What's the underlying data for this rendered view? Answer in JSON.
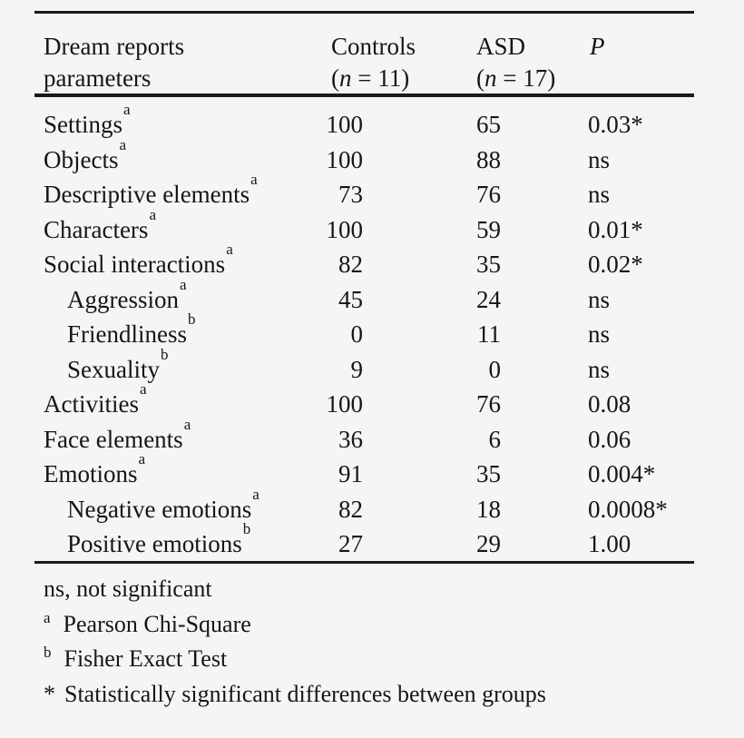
{
  "colors": {
    "background": "#f5f5f4",
    "text": "#161616",
    "rule": "#1a1a1a"
  },
  "header": {
    "param_line1": "Dream reports",
    "param_line2": "parameters",
    "controls_label": "Controls",
    "controls_n": {
      "open": "(",
      "var": "n",
      "rest": " = 11)"
    },
    "asd_label": "ASD",
    "asd_n": {
      "open": "(",
      "var": "n",
      "rest": " = 17)"
    },
    "p_label": "P"
  },
  "rows": [
    {
      "label": "Settings",
      "sup": "a",
      "indent": false,
      "controls": "100",
      "asd": "65",
      "p": "0.03*"
    },
    {
      "label": "Objects",
      "sup": "a",
      "indent": false,
      "controls": "100",
      "asd": "88",
      "p": "ns"
    },
    {
      "label": "Descriptive elements",
      "sup": "a",
      "indent": false,
      "controls": "73",
      "asd": "76",
      "p": "ns"
    },
    {
      "label": "Characters",
      "sup": "a",
      "indent": false,
      "controls": "100",
      "asd": "59",
      "p": "0.01*"
    },
    {
      "label": "Social interactions",
      "sup": "a",
      "indent": false,
      "controls": "82",
      "asd": "35",
      "p": "0.02*"
    },
    {
      "label": "Aggression",
      "sup": "a",
      "indent": true,
      "controls": "45",
      "asd": "24",
      "p": "ns"
    },
    {
      "label": "Friendliness",
      "sup": "b",
      "indent": true,
      "controls": "0",
      "asd": "11",
      "p": "ns"
    },
    {
      "label": "Sexuality",
      "sup": "b",
      "indent": true,
      "controls": "9",
      "asd": "0",
      "p": "ns"
    },
    {
      "label": "Activities",
      "sup": "a",
      "indent": false,
      "controls": "100",
      "asd": "76",
      "p": "0.08"
    },
    {
      "label": "Face elements",
      "sup": "a",
      "indent": false,
      "controls": "36",
      "asd": "6",
      "p": "0.06"
    },
    {
      "label": "Emotions",
      "sup": "a",
      "indent": false,
      "controls": "91",
      "asd": "35",
      "p": "0.004*"
    },
    {
      "label": "Negative emotions",
      "sup": "a",
      "indent": true,
      "controls": "82",
      "asd": "18",
      "p": "0.0008*"
    },
    {
      "label": "Positive emotions",
      "sup": "b",
      "indent": true,
      "controls": "27",
      "asd": "29",
      "p": "1.00"
    }
  ],
  "footnotes": {
    "ns_text": "ns, not significant",
    "a_marker": "a",
    "a_text": "Pearson Chi-Square",
    "b_marker": "b",
    "b_text": "Fisher Exact Test",
    "star_marker": "*",
    "star_text": "Statistically significant differences between groups"
  }
}
